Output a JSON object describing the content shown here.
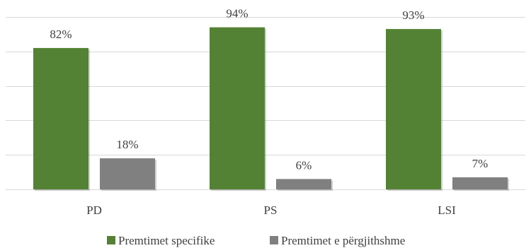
{
  "chart_data": {
    "type": "bar",
    "categories": [
      "PD",
      "PS",
      "LSI"
    ],
    "series": [
      {
        "name": "Premtimet specifike",
        "values": [
          82,
          94,
          93
        ],
        "labels": [
          "82%",
          "94%",
          "93%"
        ],
        "color": "#548235"
      },
      {
        "name": "Premtimet e përgjithshme",
        "values": [
          18,
          6,
          7
        ],
        "labels": [
          "18%",
          "6%",
          "7%"
        ],
        "color": "#808080"
      }
    ],
    "ylim": [
      0,
      100
    ],
    "grid": true,
    "legend_position": "bottom",
    "title": "",
    "xlabel": "",
    "ylabel": ""
  }
}
